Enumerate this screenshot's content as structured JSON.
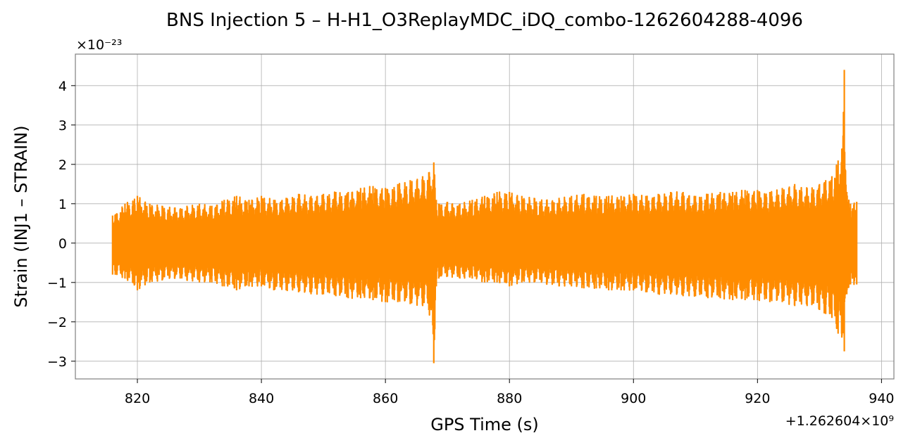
{
  "chart_data": {
    "type": "line",
    "title": "BNS Injection 5 – H-H1_O3ReplayMDC_iDQ_combo-1262604288-4096",
    "xlabel": "GPS Time (s)",
    "ylabel": "Strain (INJ1 – STRAIN)",
    "x_offset_label": "+1.262604×10⁹",
    "y_scale_label": "×10⁻²³",
    "xlim": [
      810,
      942
    ],
    "ylim": [
      -3.45,
      4.8
    ],
    "xticks": [
      820,
      840,
      860,
      880,
      900,
      920,
      940
    ],
    "yticks": [
      -3,
      -2,
      -1,
      0,
      1,
      2,
      3,
      4
    ],
    "xtick_labels": [
      "820",
      "840",
      "860",
      "880",
      "900",
      "920",
      "940"
    ],
    "ytick_labels": [
      "−3",
      "−2",
      "−1",
      "0",
      "1",
      "2",
      "3",
      "4"
    ],
    "grid": true,
    "color": "#ff8c00",
    "series": [
      {
        "x": [
          816,
          818,
          820,
          822,
          824,
          826,
          828,
          830,
          832,
          834,
          836,
          838,
          840,
          842,
          844,
          846,
          848,
          850,
          852,
          854,
          856,
          858,
          860,
          862,
          864,
          866,
          867,
          867.8,
          868.2,
          868.6,
          870,
          872,
          874,
          876,
          878,
          880,
          882,
          884,
          886,
          888,
          890,
          892,
          894,
          896,
          898,
          900,
          902,
          904,
          906,
          908,
          910,
          912,
          914,
          916,
          918,
          920,
          922,
          924,
          926,
          928,
          930,
          931,
          932,
          933,
          933.6,
          934,
          934.4,
          935,
          936
        ],
        "upper": [
          0.7,
          1.0,
          1.2,
          1.0,
          0.95,
          0.9,
          0.95,
          1.0,
          0.95,
          1.1,
          1.2,
          1.1,
          1.2,
          1.1,
          1.15,
          1.25,
          1.2,
          1.25,
          1.3,
          1.3,
          1.4,
          1.45,
          1.4,
          1.5,
          1.6,
          1.7,
          1.8,
          2.05,
          1.1,
          1.0,
          1.05,
          1.0,
          1.1,
          1.2,
          1.3,
          1.3,
          1.2,
          1.15,
          1.1,
          1.15,
          1.2,
          1.25,
          1.2,
          1.2,
          1.2,
          1.25,
          1.2,
          1.25,
          1.3,
          1.3,
          1.2,
          1.25,
          1.3,
          1.3,
          1.35,
          1.35,
          1.3,
          1.4,
          1.5,
          1.4,
          1.5,
          1.6,
          1.7,
          2.1,
          2.4,
          4.4,
          1.3,
          1.0,
          1.05
        ],
        "lower": [
          -0.8,
          -0.9,
          -1.2,
          -1.0,
          -0.95,
          -0.9,
          -0.95,
          -1.0,
          -1.0,
          -1.1,
          -1.2,
          -1.1,
          -1.1,
          -1.2,
          -1.2,
          -1.25,
          -1.3,
          -1.3,
          -1.35,
          -1.4,
          -1.4,
          -1.45,
          -1.5,
          -1.5,
          -1.55,
          -1.6,
          -1.7,
          -3.05,
          -1.1,
          -0.9,
          -0.85,
          -0.9,
          -0.9,
          -1.0,
          -1.0,
          -1.1,
          -1.0,
          -1.0,
          -1.05,
          -1.1,
          -1.1,
          -1.15,
          -1.15,
          -1.2,
          -1.2,
          -1.2,
          -1.25,
          -1.3,
          -1.3,
          -1.35,
          -1.35,
          -1.4,
          -1.4,
          -1.45,
          -1.45,
          -1.45,
          -1.5,
          -1.5,
          -1.6,
          -1.6,
          -1.7,
          -1.8,
          -1.9,
          -2.3,
          -2.4,
          -2.75,
          -1.3,
          -1.05,
          -1.05
        ]
      }
    ]
  }
}
